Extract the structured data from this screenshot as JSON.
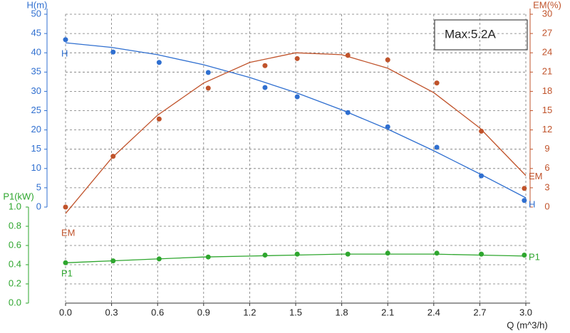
{
  "chart_data": {
    "type": "line",
    "annotation": "Max:5.2A",
    "x_label": "Q (m^3/h)",
    "xlim": [
      0,
      3
    ],
    "xticks": [
      {
        "value": 0,
        "label": "0.0"
      },
      0.3,
      0.6,
      0.9,
      1.2,
      1.5,
      1.8,
      2.1,
      2.4,
      2.7,
      {
        "value": 3,
        "label": "3.0"
      }
    ],
    "y_label": "H(m)",
    "ylim": [
      0,
      50
    ],
    "yticks": [
      0,
      5,
      10,
      15,
      20,
      25,
      30,
      35,
      40,
      45,
      50
    ],
    "y2_label": "EM(%)",
    "y2lim": [
      0,
      30
    ],
    "y2ticks": [
      0,
      3,
      6,
      9,
      12,
      15,
      18,
      21,
      24,
      27,
      30
    ],
    "y3_label": "P1(kW)",
    "y3lim": [
      0,
      1
    ],
    "y3ticks": [
      {
        "value": 0,
        "label": "0.0"
      },
      0.2,
      0.4,
      0.6,
      0.8,
      {
        "value": 1,
        "label": "1.0"
      }
    ],
    "grid": true,
    "fit_x": [
      0,
      0.3,
      0.6,
      0.9,
      1.2,
      1.5,
      1.8,
      2.1,
      2.4,
      2.7,
      3
    ],
    "series": [
      {
        "name": "H",
        "color": "#2f6fd0",
        "axis": "y",
        "x": [
          0,
          0.31,
          0.61,
          0.93,
          1.3,
          1.51,
          1.84,
          2.1,
          2.42,
          2.71,
          2.99
        ],
        "values": [
          43.4,
          40.2,
          37.5,
          34.9,
          31.0,
          28.6,
          24.5,
          20.8,
          15.5,
          8.1,
          1.7
        ],
        "fit": [
          42.6,
          41.4,
          39.5,
          36.9,
          33.6,
          29.7,
          25.2,
          20.2,
          14.6,
          8.6,
          2.4
        ]
      },
      {
        "name": "EM",
        "color": "#c0532b",
        "axis": "y2",
        "x": [
          0,
          0.31,
          0.61,
          0.93,
          1.3,
          1.51,
          1.84,
          2.1,
          2.42,
          2.71,
          2.99
        ],
        "values": [
          0,
          7.9,
          13.7,
          18.5,
          22.0,
          23.1,
          23.6,
          22.9,
          19.3,
          11.8,
          2.9
        ],
        "fit": [
          -1.0,
          7.6,
          14.3,
          19.3,
          22.5,
          24.0,
          23.7,
          21.6,
          17.8,
          12.3,
          4.9
        ]
      },
      {
        "name": "P1",
        "color": "#2ea62e",
        "axis": "y3",
        "x": [
          0,
          0.31,
          0.61,
          0.93,
          1.3,
          1.51,
          1.84,
          2.1,
          2.42,
          2.71,
          2.99
        ],
        "values": [
          0.42,
          0.44,
          0.46,
          0.48,
          0.5,
          0.51,
          0.51,
          0.52,
          0.52,
          0.51,
          0.5
        ],
        "fit": [
          0.42,
          0.44,
          0.46,
          0.48,
          0.49,
          0.5,
          0.51,
          0.51,
          0.51,
          0.5,
          0.49
        ]
      }
    ]
  }
}
